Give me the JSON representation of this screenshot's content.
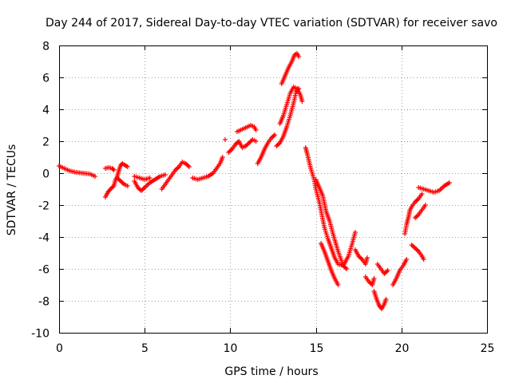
{
  "chart_data": {
    "type": "scatter",
    "title": "Day 244 of 2017, Sidereal Day-to-day VTEC variation (SDTVAR) for receiver savo",
    "xlabel": "GPS time / hours",
    "ylabel": "SDTVAR / TECUs",
    "xlim": [
      0,
      25
    ],
    "ylim": [
      -10,
      8
    ],
    "xticks": [
      "0",
      "5",
      "10",
      "15",
      "20",
      "25"
    ],
    "yticks": [
      "-10",
      "-8",
      "-6",
      "-4",
      "-2",
      "0",
      "2",
      "4",
      "6",
      "8"
    ],
    "grid": true,
    "marker": "plus",
    "color": "#ff0000",
    "series": [
      {
        "name": "SDTVAR",
        "segments": [
          [
            [
              0.0,
              0.45
            ],
            [
              0.3,
              0.3
            ],
            [
              0.6,
              0.15
            ],
            [
              1.0,
              0.05
            ],
            [
              1.4,
              0.0
            ],
            [
              1.8,
              -0.05
            ],
            [
              2.1,
              -0.2
            ]
          ],
          [
            [
              2.7,
              -1.5
            ],
            [
              2.85,
              -1.2
            ],
            [
              3.0,
              -1.0
            ],
            [
              3.2,
              -0.8
            ],
            [
              3.3,
              -0.4
            ],
            [
              3.4,
              -0.2
            ],
            [
              3.5,
              0.2
            ],
            [
              3.6,
              0.5
            ],
            [
              3.7,
              0.6
            ],
            [
              3.85,
              0.5
            ],
            [
              4.0,
              0.4
            ]
          ],
          [
            [
              2.7,
              0.3
            ],
            [
              2.9,
              0.35
            ],
            [
              3.1,
              0.3
            ],
            [
              3.2,
              0.2
            ]
          ],
          [
            [
              3.4,
              -0.3
            ],
            [
              3.6,
              -0.5
            ],
            [
              3.8,
              -0.7
            ],
            [
              4.0,
              -0.8
            ]
          ],
          [
            [
              4.4,
              -0.5
            ],
            [
              4.6,
              -0.9
            ],
            [
              4.8,
              -1.1
            ],
            [
              5.0,
              -0.9
            ],
            [
              5.3,
              -0.6
            ],
            [
              5.6,
              -0.4
            ],
            [
              5.9,
              -0.2
            ],
            [
              6.2,
              -0.1
            ]
          ],
          [
            [
              4.4,
              -0.2
            ],
            [
              4.7,
              -0.3
            ],
            [
              5.0,
              -0.4
            ],
            [
              5.3,
              -0.3
            ]
          ],
          [
            [
              6.0,
              -1.0
            ],
            [
              6.2,
              -0.7
            ],
            [
              6.4,
              -0.4
            ],
            [
              6.6,
              -0.1
            ],
            [
              6.8,
              0.2
            ],
            [
              7.0,
              0.4
            ],
            [
              7.2,
              0.7
            ],
            [
              7.4,
              0.6
            ],
            [
              7.6,
              0.4
            ]
          ],
          [
            [
              7.8,
              -0.3
            ],
            [
              8.1,
              -0.4
            ],
            [
              8.4,
              -0.3
            ],
            [
              8.7,
              -0.2
            ],
            [
              9.0,
              0.0
            ],
            [
              9.2,
              0.3
            ],
            [
              9.4,
              0.6
            ],
            [
              9.55,
              1.0
            ]
          ],
          [
            [
              9.7,
              2.1
            ]
          ],
          [
            [
              9.9,
              1.3
            ],
            [
              10.1,
              1.5
            ],
            [
              10.3,
              1.8
            ],
            [
              10.5,
              2.0
            ],
            [
              10.7,
              1.6
            ],
            [
              10.9,
              1.7
            ],
            [
              11.1,
              1.9
            ],
            [
              11.3,
              2.1
            ],
            [
              11.5,
              2.0
            ]
          ],
          [
            [
              10.4,
              2.6
            ],
            [
              10.6,
              2.7
            ],
            [
              10.8,
              2.8
            ],
            [
              11.0,
              2.9
            ],
            [
              11.2,
              3.0
            ],
            [
              11.4,
              2.9
            ],
            [
              11.5,
              2.7
            ]
          ],
          [
            [
              11.6,
              0.6
            ],
            [
              11.8,
              1.0
            ],
            [
              12.0,
              1.5
            ],
            [
              12.2,
              1.9
            ],
            [
              12.4,
              2.2
            ],
            [
              12.6,
              2.4
            ]
          ],
          [
            [
              12.7,
              1.7
            ],
            [
              12.9,
              1.9
            ],
            [
              13.1,
              2.3
            ],
            [
              13.3,
              2.9
            ],
            [
              13.5,
              3.6
            ],
            [
              13.7,
              4.4
            ],
            [
              13.85,
              5.1
            ],
            [
              14.0,
              5.3
            ]
          ],
          [
            [
              12.9,
              3.1
            ],
            [
              13.1,
              3.6
            ],
            [
              13.3,
              4.3
            ],
            [
              13.5,
              5.0
            ],
            [
              13.7,
              5.4
            ],
            [
              13.9,
              5.3
            ],
            [
              14.1,
              4.9
            ],
            [
              14.2,
              4.5
            ]
          ],
          [
            [
              13.0,
              5.6
            ],
            [
              13.2,
              6.1
            ],
            [
              13.4,
              6.6
            ],
            [
              13.6,
              7.0
            ],
            [
              13.75,
              7.4
            ],
            [
              13.9,
              7.5
            ],
            [
              14.0,
              7.3
            ]
          ],
          [
            [
              14.4,
              1.6
            ],
            [
              14.5,
              1.2
            ],
            [
              14.7,
              0.3
            ],
            [
              14.9,
              -0.4
            ],
            [
              15.0,
              -1.0
            ],
            [
              15.2,
              -1.8
            ],
            [
              15.35,
              -2.6
            ],
            [
              15.5,
              -3.4
            ],
            [
              15.7,
              -4.1
            ],
            [
              15.9,
              -4.7
            ],
            [
              16.1,
              -5.3
            ],
            [
              16.3,
              -5.7
            ],
            [
              16.6,
              -5.8
            ],
            [
              16.9,
              -5.2
            ],
            [
              17.1,
              -4.5
            ],
            [
              17.3,
              -3.7
            ]
          ],
          [
            [
              15.3,
              -4.4
            ],
            [
              15.5,
              -4.9
            ],
            [
              15.7,
              -5.5
            ],
            [
              15.9,
              -6.1
            ],
            [
              16.1,
              -6.6
            ],
            [
              16.3,
              -7.0
            ]
          ],
          [
            [
              15.0,
              -0.4
            ],
            [
              15.2,
              -0.9
            ],
            [
              15.4,
              -1.4
            ],
            [
              15.6,
              -2.4
            ],
            [
              15.8,
              -3.0
            ],
            [
              16.0,
              -3.8
            ],
            [
              16.3,
              -4.9
            ],
            [
              16.6,
              -5.8
            ],
            [
              16.8,
              -6.0
            ]
          ],
          [
            [
              17.3,
              -4.8
            ],
            [
              17.5,
              -5.2
            ],
            [
              17.7,
              -5.4
            ],
            [
              17.9,
              -5.7
            ],
            [
              18.0,
              -5.3
            ]
          ],
          [
            [
              17.9,
              -6.5
            ],
            [
              18.1,
              -6.8
            ],
            [
              18.3,
              -7.0
            ],
            [
              18.4,
              -6.6
            ]
          ],
          [
            [
              18.4,
              -7.4
            ],
            [
              18.55,
              -7.9
            ],
            [
              18.7,
              -8.3
            ],
            [
              18.85,
              -8.5
            ],
            [
              19.0,
              -8.2
            ],
            [
              19.1,
              -7.9
            ]
          ],
          [
            [
              18.6,
              -5.7
            ],
            [
              18.8,
              -6.0
            ],
            [
              19.0,
              -6.3
            ],
            [
              19.2,
              -6.1
            ]
          ],
          [
            [
              19.5,
              -7.0
            ],
            [
              19.7,
              -6.6
            ],
            [
              19.9,
              -6.1
            ],
            [
              20.1,
              -5.8
            ],
            [
              20.3,
              -5.4
            ]
          ],
          [
            [
              20.2,
              -3.8
            ],
            [
              20.3,
              -3.2
            ],
            [
              20.4,
              -2.8
            ],
            [
              20.5,
              -2.3
            ],
            [
              20.6,
              -2.1
            ],
            [
              20.8,
              -1.8
            ],
            [
              21.0,
              -1.6
            ],
            [
              21.2,
              -1.3
            ]
          ],
          [
            [
              20.8,
              -2.8
            ],
            [
              21.0,
              -2.6
            ],
            [
              21.2,
              -2.3
            ],
            [
              21.4,
              -2.0
            ]
          ],
          [
            [
              20.6,
              -4.5
            ],
            [
              20.8,
              -4.7
            ],
            [
              21.0,
              -4.9
            ],
            [
              21.2,
              -5.2
            ],
            [
              21.3,
              -5.4
            ]
          ],
          [
            [
              21.0,
              -0.9
            ],
            [
              21.3,
              -1.0
            ],
            [
              21.6,
              -1.1
            ],
            [
              21.9,
              -1.2
            ],
            [
              22.2,
              -1.1
            ],
            [
              22.5,
              -0.8
            ],
            [
              22.8,
              -0.6
            ]
          ]
        ]
      }
    ]
  }
}
